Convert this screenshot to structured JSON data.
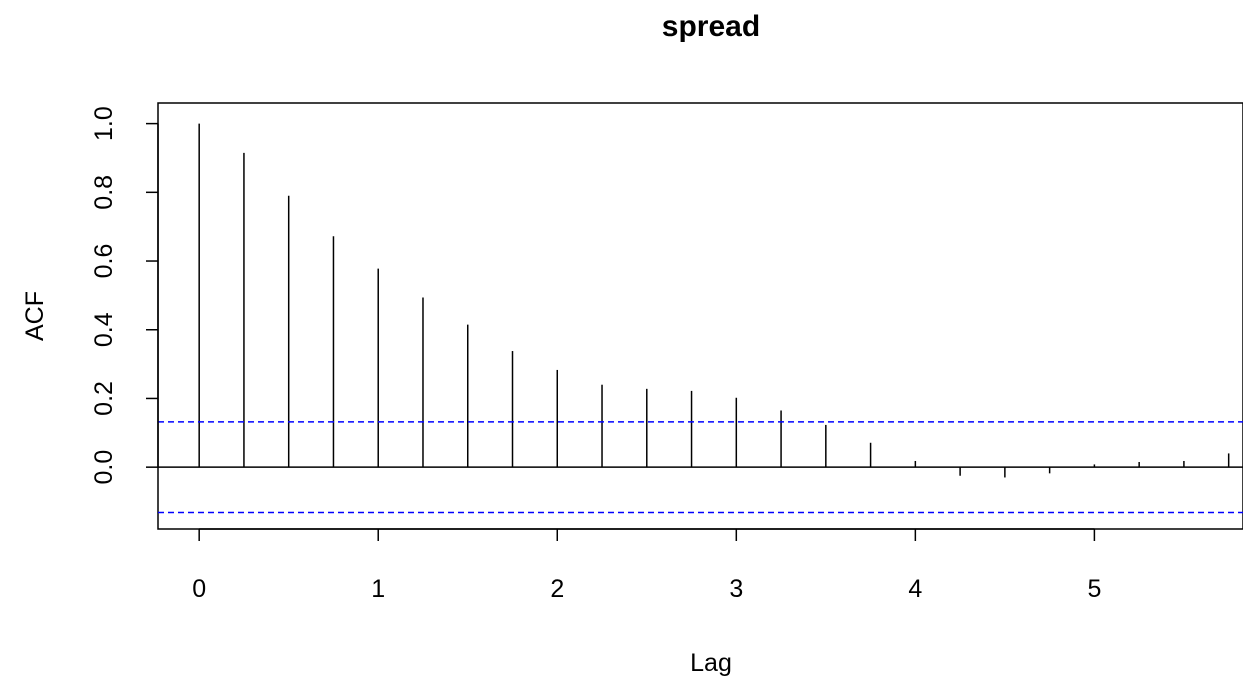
{
  "chart_data": {
    "type": "bar",
    "title": "spread",
    "xlabel": "Lag",
    "ylabel": "ACF",
    "xlim": [
      -0.23,
      5.83
    ],
    "ylim": [
      -0.18,
      1.06
    ],
    "x_ticks": [
      "0",
      "1",
      "2",
      "3",
      "4",
      "5"
    ],
    "x_tick_values": [
      0,
      1,
      2,
      3,
      4,
      5
    ],
    "y_ticks": [
      "0.0",
      "0.2",
      "0.4",
      "0.6",
      "0.8",
      "1.0"
    ],
    "y_tick_values": [
      0.0,
      0.2,
      0.4,
      0.6,
      0.8,
      1.0
    ],
    "series": [
      {
        "x": [
          0,
          0.25,
          0.5,
          0.75,
          1.0,
          1.25,
          1.5,
          1.75,
          2.0,
          2.25,
          2.5,
          2.75,
          3.0,
          3.25,
          3.5,
          3.75,
          4.0,
          4.25,
          4.5,
          4.75,
          5.0,
          5.25,
          5.5,
          5.75
        ],
        "values": [
          1.0,
          0.915,
          0.79,
          0.672,
          0.578,
          0.494,
          0.415,
          0.338,
          0.283,
          0.24,
          0.228,
          0.222,
          0.202,
          0.165,
          0.123,
          0.071,
          0.018,
          -0.025,
          -0.03,
          -0.018,
          0.008,
          0.015,
          0.018,
          0.04
        ]
      }
    ],
    "confidence_bound": 0.132,
    "colors": {
      "bars": "#000000",
      "bounds": "#0000ff",
      "axis": "#000000"
    },
    "grid": false
  }
}
